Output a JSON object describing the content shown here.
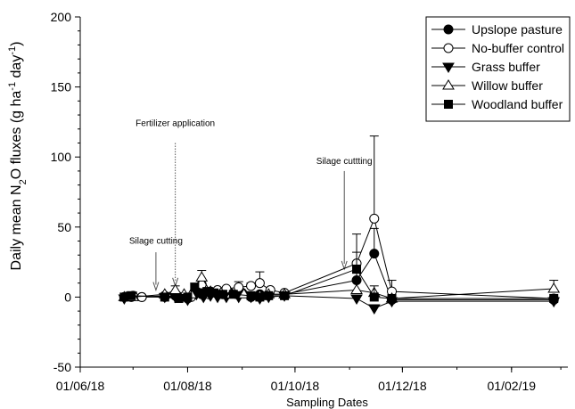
{
  "chart_data": {
    "type": "scatter",
    "title": "",
    "xlabel": "Sampling Dates",
    "ylabel_parts": [
      {
        "t": "Daily mean N"
      },
      {
        "t": "2",
        "sub": true
      },
      {
        "t": "O fluxes (g ha"
      },
      {
        "t": "-1",
        "sup": true
      },
      {
        "t": " day"
      },
      {
        "t": "-1",
        "sup": true
      },
      {
        "t": ")"
      }
    ],
    "xlim": [
      "2018-06-01",
      "2019-03-05"
    ],
    "ylim": [
      -50,
      200
    ],
    "y_ticks": [
      -50,
      0,
      50,
      100,
      150,
      200
    ],
    "x_ticks": [
      {
        "label": "01/06/18",
        "date": "2018-06-01"
      },
      {
        "label": "01/08/18",
        "date": "2018-08-01"
      },
      {
        "label": "01/10/18",
        "date": "2018-10-01"
      },
      {
        "label": "01/12/18",
        "date": "2018-12-01"
      },
      {
        "label": "01/02/19",
        "date": "2019-02-01"
      }
    ],
    "grid": false,
    "legend_position": "top-right",
    "annotations": [
      {
        "text": "Silage cutting",
        "date": "2018-07-14",
        "text_y": 38,
        "arrow_from": 32,
        "arrow_to": 5,
        "style": "solid"
      },
      {
        "text": "Fertilizer application",
        "date": "2018-07-25",
        "text_y": 122,
        "arrow_from": 110,
        "arrow_to": 8,
        "style": "dotted"
      },
      {
        "text": "Silage cuttting",
        "date": "2018-10-29",
        "text_y": 95,
        "arrow_from": 90,
        "arrow_to": 20,
        "style": "solid"
      }
    ],
    "series": [
      {
        "name": "Upslope pasture",
        "marker": "circle",
        "filled": true,
        "x": [
          "2018-06-26",
          "2018-06-30",
          "2018-07-06",
          "2018-07-19",
          "2018-07-25",
          "2018-08-01",
          "2018-08-06",
          "2018-08-09",
          "2018-08-11",
          "2018-08-14",
          "2018-08-17",
          "2018-08-21",
          "2018-08-25",
          "2018-08-29",
          "2018-09-01",
          "2018-09-06",
          "2018-09-11",
          "2018-09-16",
          "2018-09-25",
          "2018-11-05",
          "2018-11-15",
          "2018-11-25",
          "2019-02-25"
        ],
        "y": [
          0,
          0,
          0,
          0,
          1,
          -1,
          5,
          2,
          3,
          4,
          3,
          2,
          3,
          2,
          3,
          0,
          2,
          2,
          2,
          12,
          31,
          -2,
          -2
        ],
        "err": [
          0,
          0,
          0,
          0,
          0,
          0,
          2,
          1,
          1,
          1,
          1,
          1,
          1,
          1,
          1,
          0,
          0,
          0,
          0,
          5,
          18,
          0,
          0
        ]
      },
      {
        "name": "No-buffer control",
        "marker": "circle",
        "filled": false,
        "x": [
          "2018-06-26",
          "2018-07-01",
          "2018-07-06",
          "2018-07-19",
          "2018-07-27",
          "2018-08-03",
          "2018-08-09",
          "2018-08-13",
          "2018-08-18",
          "2018-08-23",
          "2018-08-30",
          "2018-09-06",
          "2018-09-11",
          "2018-09-17",
          "2018-09-25",
          "2018-11-05",
          "2018-11-15",
          "2018-11-25",
          "2019-02-25"
        ],
        "y": [
          0,
          1,
          0,
          1,
          0,
          0,
          9,
          2,
          5,
          6,
          7,
          8,
          10,
          5,
          3,
          24,
          56,
          4,
          -1
        ],
        "err": [
          0,
          0,
          0,
          0,
          0,
          0,
          3,
          0,
          0,
          0,
          4,
          2,
          8,
          0,
          0,
          21,
          59,
          8,
          0
        ]
      },
      {
        "name": "Grass buffer",
        "marker": "triangle-down",
        "filled": true,
        "x": [
          "2018-06-26",
          "2018-06-30",
          "2018-07-19",
          "2018-07-25",
          "2018-08-01",
          "2018-08-06",
          "2018-08-10",
          "2018-08-14",
          "2018-08-18",
          "2018-08-23",
          "2018-08-30",
          "2018-09-06",
          "2018-09-11",
          "2018-09-16",
          "2018-09-25",
          "2018-11-05",
          "2018-11-15",
          "2018-11-25",
          "2019-02-25"
        ],
        "y": [
          -1,
          1,
          0,
          0,
          -2,
          2,
          0,
          1,
          0,
          0,
          0,
          0,
          -1,
          0,
          1,
          -1,
          -8,
          -3,
          -3
        ],
        "err": [
          0,
          0,
          0,
          0,
          0,
          0,
          0,
          0,
          0,
          0,
          0,
          0,
          0,
          0,
          0,
          0,
          2,
          0,
          0
        ]
      },
      {
        "name": "Willow buffer",
        "marker": "triangle-up",
        "filled": false,
        "x": [
          "2018-06-26",
          "2018-07-01",
          "2018-07-19",
          "2018-07-25",
          "2018-07-30",
          "2018-08-03",
          "2018-08-09",
          "2018-08-14",
          "2018-08-20",
          "2018-08-26",
          "2018-09-02",
          "2018-09-11",
          "2018-09-16",
          "2018-09-25",
          "2018-11-05",
          "2018-11-15",
          "2018-11-25",
          "2019-02-25"
        ],
        "y": [
          0,
          0,
          2,
          5,
          2,
          2,
          14,
          4,
          3,
          2,
          2,
          1,
          2,
          2,
          5,
          3,
          -1,
          6
        ],
        "err": [
          0,
          0,
          0,
          3,
          0,
          0,
          5,
          0,
          0,
          0,
          0,
          0,
          0,
          0,
          0,
          0,
          0,
          6
        ]
      },
      {
        "name": "Woodland buffer",
        "marker": "square",
        "filled": true,
        "x": [
          "2018-06-26",
          "2018-06-30",
          "2018-07-19",
          "2018-07-27",
          "2018-08-01",
          "2018-08-05",
          "2018-08-08",
          "2018-08-12",
          "2018-08-16",
          "2018-08-21",
          "2018-08-27",
          "2018-09-06",
          "2018-09-11",
          "2018-09-16",
          "2018-09-25",
          "2018-11-05",
          "2018-11-15",
          "2018-11-25",
          "2019-02-25"
        ],
        "y": [
          0,
          1,
          0,
          -1,
          0,
          7,
          3,
          4,
          3,
          2,
          2,
          1,
          0,
          1,
          1,
          20,
          0,
          -1,
          -1
        ],
        "err": [
          0,
          0,
          0,
          0,
          0,
          3,
          0,
          0,
          0,
          0,
          0,
          0,
          0,
          0,
          0,
          12,
          8,
          0,
          0
        ]
      }
    ]
  }
}
